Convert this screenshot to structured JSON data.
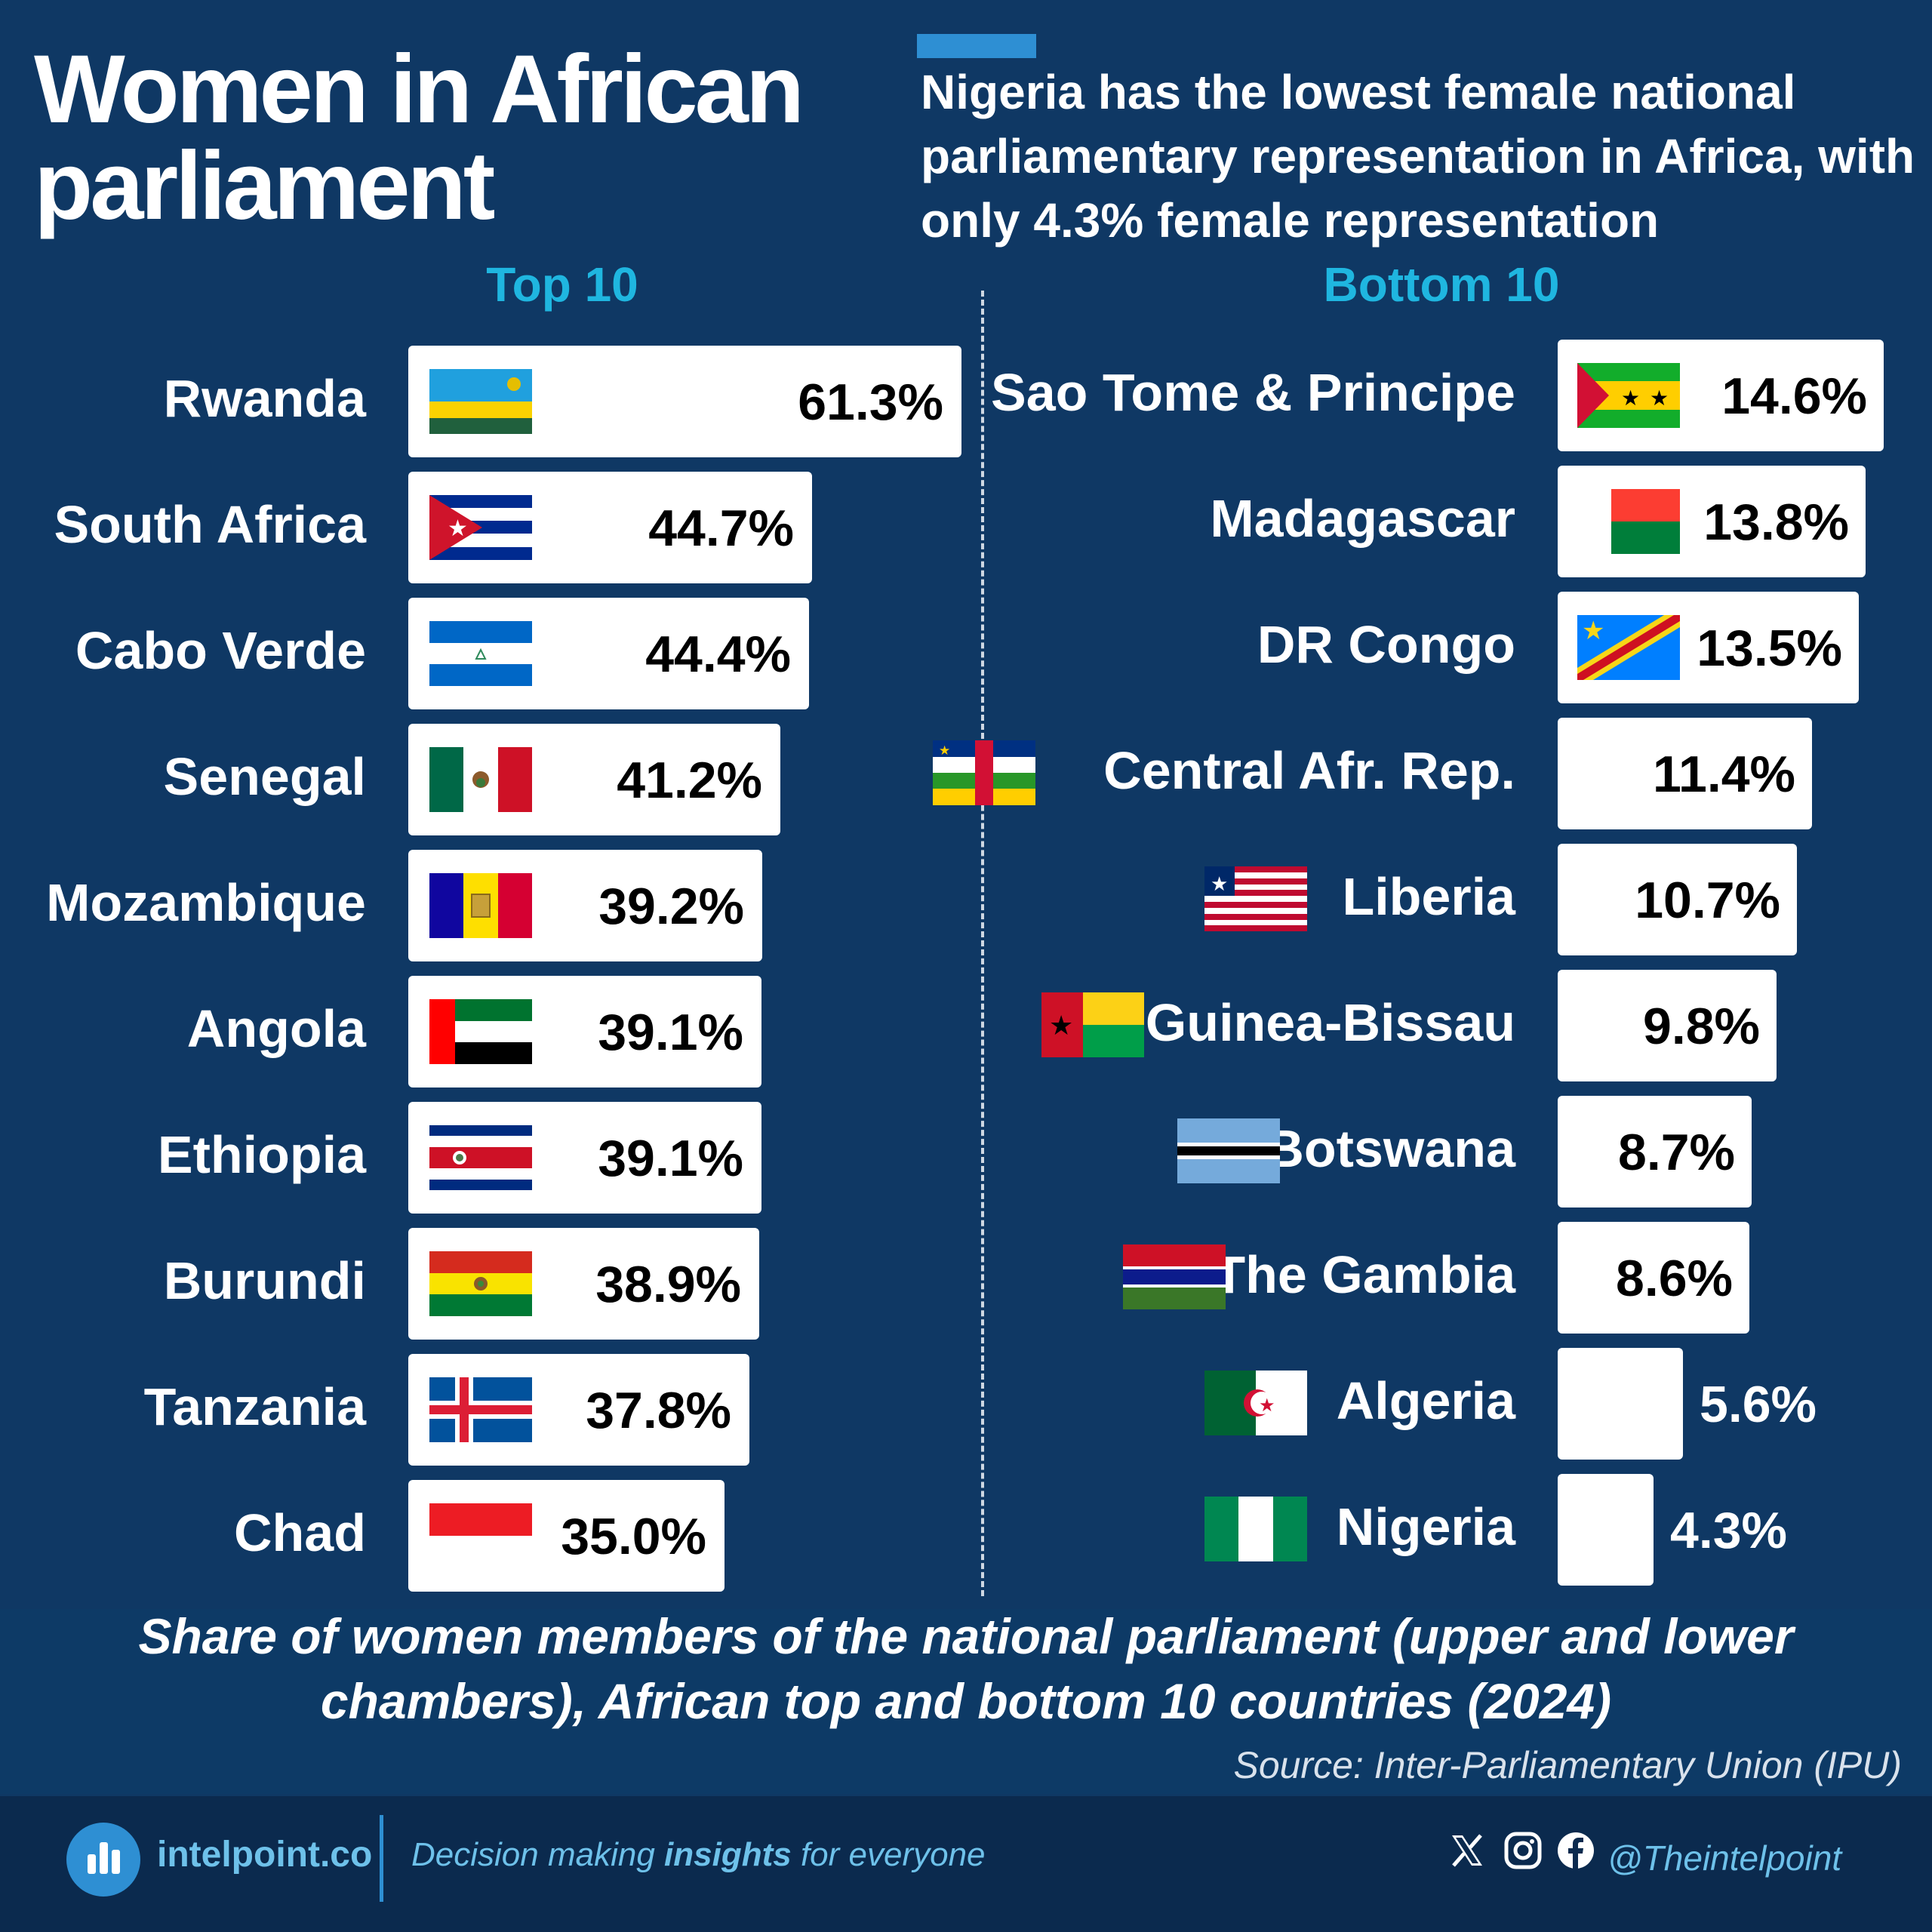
{
  "title_line1": "Women in African",
  "title_line2": "parliament",
  "subtitle": "Nigeria has the lowest female national parliamentary representation in Africa, with only 4.3% female representation",
  "caption": "Share of women members of the national parliament (upper and lower chambers), African top and bottom 10 countries (2024)",
  "source": "Source: Inter-Parliamentary Union (IPU)",
  "footer": {
    "brand": "intelpoint.co",
    "tagline_pre": "Decision making ",
    "tagline_bold": "insights",
    "tagline_post": " for everyone",
    "handle": "@Theintelpoint"
  },
  "chart_data": [
    {
      "type": "bar",
      "title": "Top 10",
      "categories": [
        "Rwanda",
        "South Africa",
        "Cabo Verde",
        "Senegal",
        "Mozambique",
        "Angola",
        "Ethiopia",
        "Burundi",
        "Tanzania",
        "Chad"
      ],
      "values": [
        61.3,
        44.7,
        44.4,
        41.2,
        39.2,
        39.1,
        39.1,
        38.9,
        37.8,
        35.0
      ],
      "labels": [
        "61.3%",
        "44.7%",
        "44.4%",
        "41.2%",
        "39.2%",
        "39.1%",
        "39.1%",
        "38.9%",
        "37.8%",
        "35.0%"
      ],
      "flags": [
        "rwanda-flag",
        "cuba-flag",
        "nicaragua-flag",
        "mexico-flag",
        "andorra-flag",
        "uae-flag",
        "costa-rica-flag",
        "bolivia-flag",
        "iceland-flag",
        "indonesia-flag"
      ]
    },
    {
      "type": "bar",
      "title": "Bottom 10",
      "categories": [
        "Sao Tome & Principe",
        "Madagascar",
        "DR Congo",
        "Central Afr. Rep.",
        "Liberia",
        "Guinea-Bissau",
        "Botswana",
        "The Gambia",
        "Algeria",
        "Nigeria"
      ],
      "values": [
        14.6,
        13.8,
        13.5,
        11.4,
        10.7,
        9.8,
        8.7,
        8.6,
        5.6,
        4.3
      ],
      "labels": [
        "14.6%",
        "13.8%",
        "13.5%",
        "11.4%",
        "10.7%",
        "9.8%",
        "8.7%",
        "8.6%",
        "5.6%",
        "4.3%"
      ],
      "flags": [
        "sao-tome-flag",
        "madagascar-flag",
        "dr-congo-flag",
        "central-african-republic-flag",
        "liberia-flag",
        "guinea-bissau-flag",
        "botswana-flag",
        "gambia-flag",
        "algeria-flag",
        "nigeria-flag"
      ]
    }
  ],
  "colors": {
    "background": "#0f3864",
    "accent": "#2e8fd3",
    "heading": "#1fb6e0",
    "bar": "#ffffff"
  }
}
